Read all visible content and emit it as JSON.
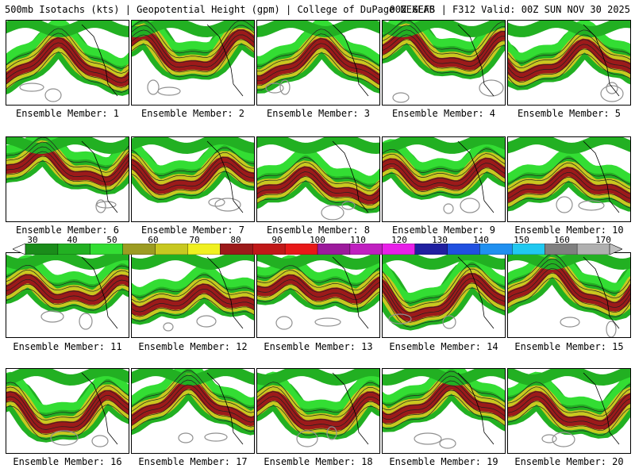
{
  "header": {
    "title_left": "500mb Isotachs (kts) | Geopotential Height (gpm) | College of DuPage NEXLAB",
    "title_right": "00Z GEFS | F312 Valid: 00Z SUN NOV 30 2025"
  },
  "members": [
    {
      "label": "Ensemble Member: 1"
    },
    {
      "label": "Ensemble Member: 2"
    },
    {
      "label": "Ensemble Member: 3"
    },
    {
      "label": "Ensemble Member: 4"
    },
    {
      "label": "Ensemble Member: 5"
    },
    {
      "label": "Ensemble Member: 6"
    },
    {
      "label": "Ensemble Member: 7"
    },
    {
      "label": "Ensemble Member: 8"
    },
    {
      "label": "Ensemble Member: 9"
    },
    {
      "label": "Ensemble Member: 10"
    },
    {
      "label": "Ensemble Member: 11"
    },
    {
      "label": "Ensemble Member: 12"
    },
    {
      "label": "Ensemble Member: 13"
    },
    {
      "label": "Ensemble Member: 14"
    },
    {
      "label": "Ensemble Member: 15"
    },
    {
      "label": "Ensemble Member: 16"
    },
    {
      "label": "Ensemble Member: 17"
    },
    {
      "label": "Ensemble Member: 18"
    },
    {
      "label": "Ensemble Member: 19"
    },
    {
      "label": "Ensemble Member: 20"
    }
  ],
  "colorbar": {
    "labels": [
      "30",
      "40",
      "50",
      "60",
      "70",
      "80",
      "90",
      "100",
      "110",
      "120",
      "130",
      "140",
      "150",
      "160",
      "170"
    ],
    "colors": [
      "#1a8c1a",
      "#22b022",
      "#33dd33",
      "#9c9c22",
      "#c8c820",
      "#f0f020",
      "#9c1a1a",
      "#c01818",
      "#e81818",
      "#9c1a9c",
      "#c020c0",
      "#e820e8",
      "#2020a0",
      "#2050e0",
      "#2090f0",
      "#20c8f0",
      "#808080",
      "#b0b0b0"
    ]
  }
}
